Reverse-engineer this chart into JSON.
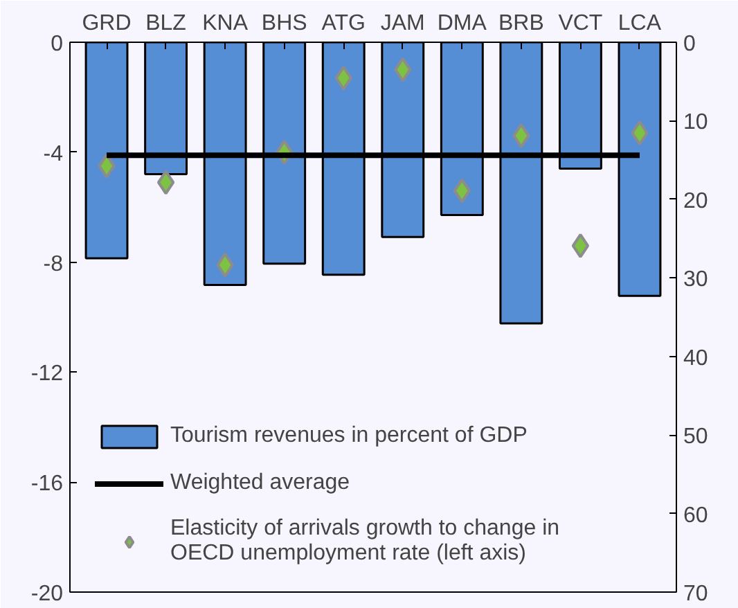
{
  "chart_data": {
    "type": "bar",
    "categories": [
      "GRD",
      "BLZ",
      "KNA",
      "BHS",
      "ATG",
      "JAM",
      "DMA",
      "BRB",
      "VCT",
      "LCA"
    ],
    "series": [
      {
        "name": "Tourism revenues in percent of GDP",
        "axis": "y2",
        "color": "#558ed5",
        "values": [
          27.5,
          16.8,
          30.9,
          28.2,
          29.6,
          24.8,
          22.0,
          35.8,
          16.1,
          32.3
        ]
      },
      {
        "name": "Elasticity of arrivals growth to change in\nOECD unemployment rate (left axis)",
        "type": "scatter",
        "marker": "diamond",
        "color": "#7dc242",
        "values": [
          -4.5,
          -5.1,
          -8.1,
          -4.0,
          -1.3,
          -1.0,
          -5.4,
          -3.4,
          -7.4,
          -3.3
        ]
      }
    ],
    "ref_lines": [
      {
        "axis": "y2",
        "value": 14.4,
        "label": "Weighted average",
        "color": "#000000",
        "line_style": "solid"
      }
    ],
    "ylim": [
      -20,
      0
    ],
    "yticks": [
      0,
      -4,
      -8,
      -12,
      -16,
      -20
    ],
    "y2lim": [
      70,
      0
    ],
    "y2ticks": [
      0,
      10,
      20,
      30,
      40,
      50,
      60,
      70
    ],
    "grid": false,
    "legend": "bottom left"
  }
}
